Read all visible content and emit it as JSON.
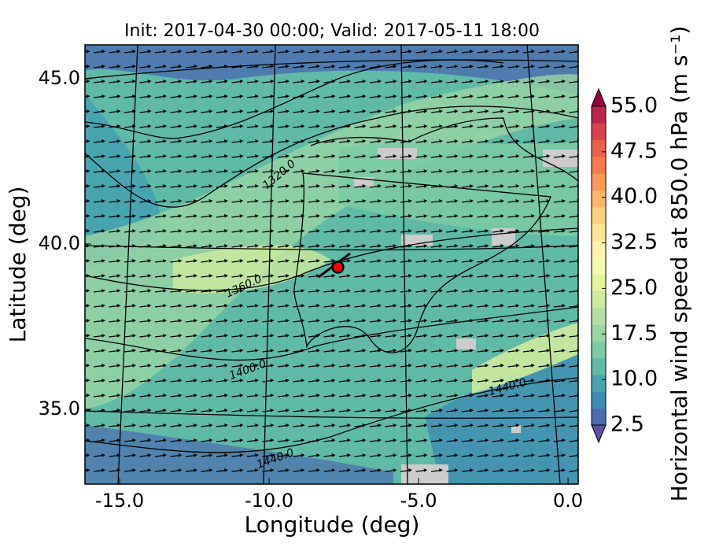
{
  "chart_data": {
    "type": "contourf-map",
    "title": "Init: 2017-04-30 00:00; Valid: 2017-05-11 18:00",
    "x_label": "Longitude (deg)",
    "y_label": "Latitude (deg)",
    "xlim": [
      -16.16,
      0.34
    ],
    "ylim": [
      32.74,
      46.02
    ],
    "xticks": [
      {
        "value": -15,
        "label": "-15.0"
      },
      {
        "value": -10,
        "label": "-10.0"
      },
      {
        "value": -5,
        "label": "-5.0"
      },
      {
        "value": 0,
        "label": "0.0"
      }
    ],
    "yticks": [
      {
        "value": 35,
        "label": "35.0"
      },
      {
        "value": 40,
        "label": "40.0"
      },
      {
        "value": 45,
        "label": "45.0"
      }
    ],
    "colorbar": {
      "label": "Horizontal wind speed at 850.0 hPa (m s⁻¹)",
      "clim": [
        2.5,
        55
      ],
      "ticks": [
        2.5,
        {
          "value": 10,
          "label": "10.0"
        },
        17.5,
        {
          "value": 25,
          "label": "25.0"
        },
        32.5,
        {
          "value": 40,
          "label": "40.0"
        },
        47.5,
        {
          "value": 55,
          "label": "55.0"
        }
      ],
      "colors": [
        "#5e4fa2",
        "#4a6db1",
        "#3d8cb5",
        "#46a5b0",
        "#5fbaa7",
        "#7bcba3",
        "#99d6a4",
        "#b3e0a2",
        "#cdeb9d",
        "#e2f399",
        "#f3faaf",
        "#fdf3ab",
        "#fee593",
        "#fdd07b",
        "#fdb767",
        "#fa9a57",
        "#f57c4a",
        "#e8604a",
        "#d6434c",
        "#bc264a",
        "#9e0142"
      ]
    },
    "contour_labels": [
      "1320.0",
      "1360.0",
      "1400.0",
      "1440.0",
      "1440.0"
    ],
    "marker": {
      "lon": -7.7,
      "lat": 39.3,
      "color": "#ff0000"
    }
  }
}
